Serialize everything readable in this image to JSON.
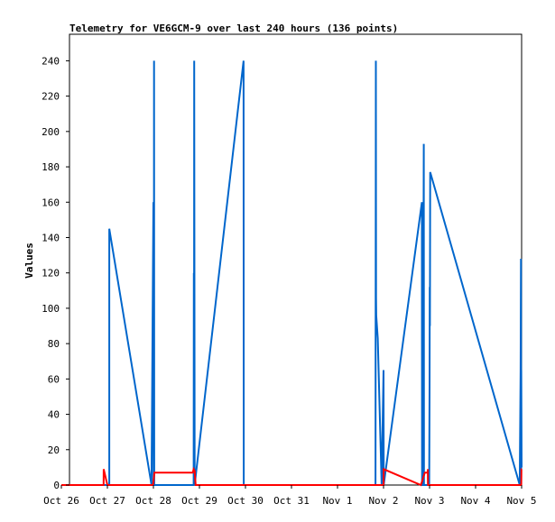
{
  "chart_data": {
    "type": "line",
    "title": "Telemetry for VE6GCM-9 over last 240 hours (136 points)",
    "xlabel": "",
    "ylabel": "Values",
    "ylim": [
      0,
      255
    ],
    "xlim": [
      "Oct 26 00:00",
      "Nov 5 00:00"
    ],
    "x_ticks": [
      "Oct 26",
      "Oct 27",
      "Oct 28",
      "Oct 29",
      "Oct 30",
      "Oct 31",
      "Nov 1",
      "Nov 2",
      "Nov 3",
      "Nov 4",
      "Nov 5"
    ],
    "y_ticks": [
      0,
      20,
      40,
      60,
      80,
      100,
      120,
      140,
      160,
      180,
      200,
      220,
      240
    ],
    "grid": false,
    "legend": "none",
    "series": [
      {
        "color": "#0066cc",
        "points": [
          [
            "Oct 26 00:00",
            0
          ],
          [
            "Oct 27 01:00",
            0
          ],
          [
            "Oct 27 01:00",
            145
          ],
          [
            "Oct 27 23:00",
            0
          ],
          [
            "Oct 28 00:00",
            160
          ],
          [
            "Oct 28 00:05",
            0
          ],
          [
            "Oct 28 00:10",
            112
          ],
          [
            "Oct 28 00:15",
            0
          ],
          [
            "Oct 28 00:20",
            240
          ],
          [
            "Oct 28 00:25",
            0
          ],
          [
            "Oct 28 21:00",
            0
          ],
          [
            "Oct 28 21:05",
            120
          ],
          [
            "Oct 28 21:10",
            0
          ],
          [
            "Oct 28 21:15",
            240
          ],
          [
            "Oct 28 21:30",
            0
          ],
          [
            "Oct 29 23:00",
            240
          ],
          [
            "Oct 29 23:05",
            0
          ],
          [
            "Nov 1 19:50",
            0
          ],
          [
            "Nov 1 20:00",
            240
          ],
          [
            "Nov 1 20:05",
            106
          ],
          [
            "Nov 1 20:10",
            96
          ],
          [
            "Nov 1 21:00",
            83
          ],
          [
            "Nov 1 23:00",
            0
          ],
          [
            "Nov 2 00:00",
            65
          ],
          [
            "Nov 2 00:05",
            0
          ],
          [
            "Nov 2 20:00",
            160
          ],
          [
            "Nov 2 20:05",
            0
          ],
          [
            "Nov 2 20:10",
            65
          ],
          [
            "Nov 2 20:15",
            0
          ],
          [
            "Nov 2 20:30",
            0
          ],
          [
            "Nov 2 21:00",
            193
          ],
          [
            "Nov 2 21:05",
            0
          ],
          [
            "Nov 2 23:50",
            0
          ],
          [
            "Nov 3 00:00",
            56
          ],
          [
            "Nov 3 00:05",
            112
          ],
          [
            "Nov 3 00:10",
            90
          ],
          [
            "Nov 3 00:20",
            177
          ],
          [
            "Nov 4 23:00",
            0
          ],
          [
            "Nov 4 23:30",
            65
          ],
          [
            "Nov 4 23:40",
            128
          ],
          [
            "Nov 4 23:45",
            0
          ],
          [
            "Nov 4 23:50",
            65
          ],
          [
            "Nov 5 00:00",
            10
          ]
        ]
      },
      {
        "color": "#ff0000",
        "points": [
          [
            "Oct 26 00:00",
            0
          ],
          [
            "Oct 26 22:00",
            0
          ],
          [
            "Oct 26 22:05",
            9
          ],
          [
            "Oct 27 00:00",
            0
          ],
          [
            "Oct 27 23:50",
            0
          ],
          [
            "Oct 28 00:30",
            7
          ],
          [
            "Oct 28 20:30",
            7
          ],
          [
            "Oct 28 21:00",
            9
          ],
          [
            "Oct 28 21:30",
            8
          ],
          [
            "Oct 28 22:00",
            0
          ],
          [
            "Nov 2 00:00",
            0
          ],
          [
            "Nov 2 00:05",
            9
          ],
          [
            "Nov 2 19:30",
            0
          ],
          [
            "Nov 2 21:30",
            7
          ],
          [
            "Nov 2 23:00",
            7
          ],
          [
            "Nov 2 23:05",
            9
          ],
          [
            "Nov 2 23:10",
            0
          ],
          [
            "Nov 4 23:50",
            0
          ],
          [
            "Nov 4 23:55",
            9
          ],
          [
            "Nov 5 00:00",
            9
          ]
        ]
      }
    ]
  }
}
